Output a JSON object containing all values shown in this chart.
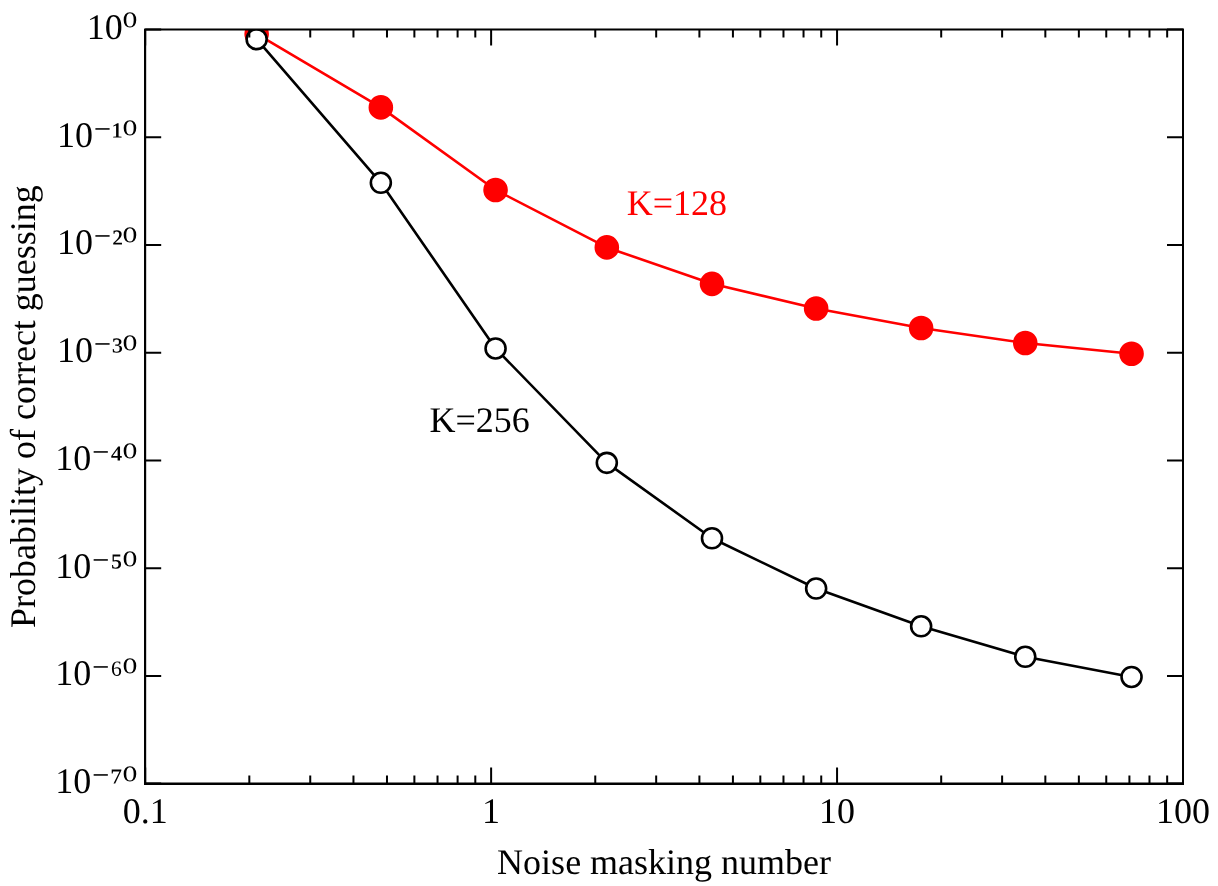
{
  "chart_data": {
    "type": "line",
    "xlabel": "Noise masking number",
    "ylabel": "Probability of correct guessing",
    "log": "xy",
    "marker": "circle",
    "line_style": "solid",
    "grid": false,
    "legend": false,
    "xlim": [
      0.1,
      100
    ],
    "xticks": [
      0.1,
      {
        "value": 0.2,
        "label": null
      },
      {
        "value": 0.3,
        "label": null
      },
      {
        "value": 0.4,
        "label": null
      },
      {
        "value": 0.5,
        "label": null
      },
      {
        "value": 0.6,
        "label": null
      },
      {
        "value": 0.7,
        "label": null
      },
      {
        "value": 0.8,
        "label": null
      },
      {
        "value": 0.9,
        "label": null
      },
      1,
      {
        "value": 2,
        "label": null
      },
      {
        "value": 3,
        "label": null
      },
      {
        "value": 4,
        "label": null
      },
      {
        "value": 5,
        "label": null
      },
      {
        "value": 6,
        "label": null
      },
      {
        "value": 7,
        "label": null
      },
      {
        "value": 8,
        "label": null
      },
      {
        "value": 9,
        "label": null
      },
      10,
      {
        "value": 20,
        "label": null
      },
      {
        "value": 30,
        "label": null
      },
      {
        "value": 40,
        "label": null
      },
      {
        "value": 50,
        "label": null
      },
      {
        "value": 60,
        "label": null
      },
      {
        "value": 70,
        "label": null
      },
      {
        "value": 80,
        "label": null
      },
      {
        "value": 90,
        "label": null
      },
      100
    ],
    "ylim": [
      1e-70,
      1
    ],
    "yticks": [
      {
        "value": 1e-70,
        "label": "10⁻⁷⁰"
      },
      {
        "value": 1e-60,
        "label": "10⁻⁶⁰"
      },
      {
        "value": 1e-50,
        "label": "10⁻⁵⁰"
      },
      {
        "value": 1e-40,
        "label": "10⁻⁴⁰"
      },
      {
        "value": 1e-30,
        "label": "10⁻³⁰"
      },
      {
        "value": 1e-20,
        "label": "10⁻²⁰"
      },
      {
        "value": 1e-10,
        "label": "10⁻¹⁰"
      },
      {
        "value": 1,
        "label": "10⁰"
      }
    ],
    "x": [
      0.21,
      0.48,
      1.03,
      2.16,
      4.35,
      8.7,
      17.5,
      35,
      71
    ],
    "series": [
      {
        "name": "K=128",
        "color": "#ff0000",
        "values": [
          0.4,
          6e-08,
          1.3e-15,
          6e-21,
          2.5e-24,
          1.3e-26,
          2e-28,
          8e-30,
          8e-31
        ]
      },
      {
        "name": "K=256",
        "color": "#000000",
        "values": [
          0.13,
          6e-15,
          2.5e-30,
          6e-41,
          6e-48,
          1.3e-52,
          4e-56,
          6e-59,
          8e-61
        ]
      }
    ]
  }
}
